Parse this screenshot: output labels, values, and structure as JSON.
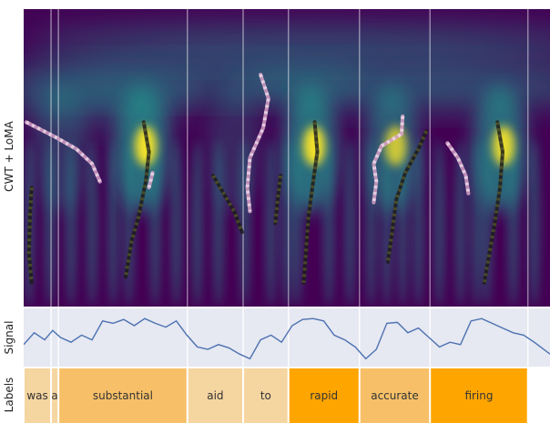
{
  "panels": {
    "cwt_label": "CWT + LoMA",
    "signal_label": "Signal",
    "labels_label": "Labels"
  },
  "colors": {
    "heat_low": "#440154",
    "heat_mid": "#21918c",
    "heat_high": "#fde725",
    "signal_bg": "#e6e8f2",
    "signal_line": "#4c72b0",
    "label_light": "#f5d5a0",
    "label_medium": "#f7c068",
    "label_strong": "#ffa500",
    "loma_dark": "#1c1c1c",
    "loma_light": "#d8a0c8"
  },
  "chart_data": {
    "type": "heatmap",
    "description_free": true,
    "x_range": [
      0,
      1
    ],
    "word_boundaries": [
      0.052,
      0.066,
      0.311,
      0.417,
      0.503,
      0.638,
      0.772,
      0.958
    ],
    "words": [
      {
        "text": "was",
        "start": 0.0,
        "end": 0.052,
        "prominence": "light"
      },
      {
        "text": "a",
        "start": 0.052,
        "end": 0.066,
        "prominence": "light"
      },
      {
        "text": "substantial",
        "start": 0.066,
        "end": 0.311,
        "prominence": "medium"
      },
      {
        "text": "aid",
        "start": 0.311,
        "end": 0.417,
        "prominence": "light"
      },
      {
        "text": "to",
        "start": 0.417,
        "end": 0.503,
        "prominence": "light"
      },
      {
        "text": "rapid",
        "start": 0.503,
        "end": 0.638,
        "prominence": "strong"
      },
      {
        "text": "accurate",
        "start": 0.638,
        "end": 0.772,
        "prominence": "medium"
      },
      {
        "text": "firing",
        "start": 0.772,
        "end": 0.958,
        "prominence": "strong"
      }
    ],
    "label_gaps": [
      [
        0.062,
        0.068
      ],
      [
        0.418,
        0.425
      ],
      [
        0.443,
        0.435
      ],
      [
        0.643,
        0.67
      ]
    ],
    "signal": {
      "x": [
        0.0,
        0.02,
        0.04,
        0.055,
        0.07,
        0.09,
        0.11,
        0.13,
        0.15,
        0.17,
        0.19,
        0.21,
        0.23,
        0.25,
        0.27,
        0.29,
        0.31,
        0.33,
        0.35,
        0.37,
        0.39,
        0.41,
        0.43,
        0.45,
        0.47,
        0.49,
        0.51,
        0.53,
        0.55,
        0.57,
        0.59,
        0.61,
        0.63,
        0.65,
        0.67,
        0.69,
        0.71,
        0.73,
        0.75,
        0.77,
        0.79,
        0.81,
        0.83,
        0.85,
        0.87,
        0.89,
        0.91,
        0.93,
        0.95,
        0.97,
        1.0
      ],
      "y": [
        0.35,
        0.6,
        0.45,
        0.65,
        0.5,
        0.4,
        0.55,
        0.45,
        0.85,
        0.8,
        0.88,
        0.75,
        0.9,
        0.8,
        0.72,
        0.85,
        0.55,
        0.3,
        0.25,
        0.35,
        0.28,
        0.15,
        0.05,
        0.45,
        0.55,
        0.4,
        0.75,
        0.88,
        0.9,
        0.85,
        0.55,
        0.45,
        0.3,
        0.05,
        0.25,
        0.8,
        0.82,
        0.6,
        0.7,
        0.5,
        0.3,
        0.4,
        0.35,
        0.85,
        0.9,
        0.8,
        0.7,
        0.6,
        0.55,
        0.4,
        0.15
      ]
    },
    "blobs": [
      {
        "x": 0.225,
        "intensity": 1.0
      },
      {
        "x": 0.545,
        "intensity": 1.0
      },
      {
        "x": 0.7,
        "intensity": 0.8
      },
      {
        "x": 0.905,
        "intensity": 0.95
      },
      {
        "x": 0.07,
        "intensity": 0.45
      },
      {
        "x": 0.4,
        "intensity": 0.35
      }
    ],
    "loma_dark_paths": [
      [
        [
          0.228,
          0.38
        ],
        [
          0.238,
          0.48
        ],
        [
          0.232,
          0.58
        ],
        [
          0.218,
          0.7
        ],
        [
          0.205,
          0.78
        ],
        [
          0.194,
          0.9
        ]
      ],
      [
        [
          0.553,
          0.38
        ],
        [
          0.558,
          0.48
        ],
        [
          0.55,
          0.58
        ],
        [
          0.541,
          0.7
        ],
        [
          0.537,
          0.8
        ],
        [
          0.532,
          0.92
        ]
      ],
      [
        [
          0.765,
          0.41
        ],
        [
          0.75,
          0.47
        ],
        [
          0.725,
          0.55
        ],
        [
          0.708,
          0.64
        ],
        [
          0.7,
          0.75
        ],
        [
          0.692,
          0.85
        ]
      ],
      [
        [
          0.9,
          0.38
        ],
        [
          0.91,
          0.48
        ],
        [
          0.905,
          0.6
        ],
        [
          0.895,
          0.72
        ],
        [
          0.885,
          0.82
        ],
        [
          0.875,
          0.92
        ]
      ],
      [
        [
          0.015,
          0.6
        ],
        [
          0.012,
          0.7
        ],
        [
          0.01,
          0.82
        ],
        [
          0.015,
          0.92
        ]
      ],
      [
        [
          0.36,
          0.56
        ],
        [
          0.38,
          0.62
        ],
        [
          0.4,
          0.68
        ],
        [
          0.415,
          0.75
        ]
      ],
      [
        [
          0.488,
          0.56
        ],
        [
          0.482,
          0.65
        ],
        [
          0.478,
          0.72
        ]
      ]
    ],
    "loma_light_paths": [
      [
        [
          0.45,
          0.22
        ],
        [
          0.465,
          0.3
        ],
        [
          0.455,
          0.4
        ],
        [
          0.43,
          0.5
        ],
        [
          0.425,
          0.6
        ],
        [
          0.43,
          0.68
        ]
      ],
      [
        [
          0.005,
          0.38
        ],
        [
          0.06,
          0.43
        ],
        [
          0.1,
          0.47
        ],
        [
          0.13,
          0.52
        ],
        [
          0.145,
          0.58
        ]
      ],
      [
        [
          0.72,
          0.36
        ],
        [
          0.718,
          0.42
        ],
        [
          0.68,
          0.46
        ],
        [
          0.665,
          0.52
        ],
        [
          0.67,
          0.58
        ],
        [
          0.665,
          0.65
        ]
      ],
      [
        [
          0.805,
          0.45
        ],
        [
          0.825,
          0.5
        ],
        [
          0.84,
          0.56
        ],
        [
          0.845,
          0.62
        ]
      ],
      [
        [
          0.245,
          0.55
        ],
        [
          0.238,
          0.6
        ]
      ]
    ]
  }
}
